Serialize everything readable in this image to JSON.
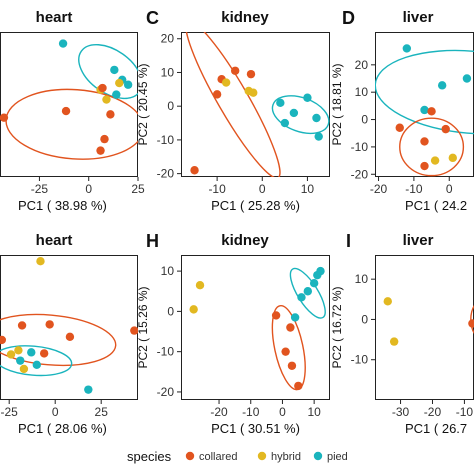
{
  "colors": {
    "collared": "#e1541f",
    "hybrid": "#e2b821",
    "pied": "#1ab4bd"
  },
  "legend": {
    "title": "species",
    "items": [
      {
        "key": "collared",
        "label": "collared"
      },
      {
        "key": "hybrid",
        "label": "hybrid"
      },
      {
        "key": "pied",
        "label": "pied"
      }
    ]
  },
  "chart_data": [
    {
      "type": "scatter",
      "title": "heart",
      "panel_tag": "",
      "xlabel": "PC1 ( 38.98 %)",
      "ylabel": "",
      "xlim": [
        -45,
        25
      ],
      "ylim": [
        -22,
        22
      ],
      "xticks": [
        -25,
        0,
        25
      ],
      "xtick_labels": [
        "-25",
        "0",
        "25"
      ],
      "yticks": [],
      "ytick_labels": [],
      "points": [
        {
          "s": "pied",
          "x": -13,
          "y": 18.5
        },
        {
          "s": "pied",
          "x": 13,
          "y": 10.5
        },
        {
          "s": "pied",
          "x": 17,
          "y": 7.5
        },
        {
          "s": "pied",
          "x": 20,
          "y": 6
        },
        {
          "s": "pied",
          "x": 14,
          "y": 3
        },
        {
          "s": "hybrid",
          "x": 15.5,
          "y": 6.5
        },
        {
          "s": "hybrid",
          "x": 6,
          "y": 4.5
        },
        {
          "s": "hybrid",
          "x": 9,
          "y": 1.5
        },
        {
          "s": "collared",
          "x": 7,
          "y": 5
        },
        {
          "s": "collared",
          "x": -11.5,
          "y": -2
        },
        {
          "s": "collared",
          "x": 11,
          "y": -3
        },
        {
          "s": "collared",
          "x": -43,
          "y": -4
        },
        {
          "s": "collared",
          "x": 8,
          "y": -10.5
        },
        {
          "s": "collared",
          "x": 6,
          "y": -14
        }
      ],
      "ellipses": [
        {
          "s": "pied",
          "cx": 11,
          "cy": 10,
          "rx": 18,
          "ry": 6.5,
          "angle": -35
        },
        {
          "s": "collared",
          "cx": -7,
          "cy": -6,
          "rx": 35,
          "ry": 10.5,
          "angle": -4
        }
      ]
    },
    {
      "type": "scatter",
      "title": "kidney",
      "panel_tag": "C",
      "xlabel": "PC1 ( 25.28 %)",
      "ylabel": "PC2 ( 20.45 %)",
      "xlim": [
        -18,
        15
      ],
      "ylim": [
        -21,
        22
      ],
      "xticks": [
        -10,
        0,
        10
      ],
      "xtick_labels": [
        "-10",
        "0",
        "10"
      ],
      "yticks": [
        -20,
        -10,
        0,
        10,
        20
      ],
      "ytick_labels": [
        "-20",
        "-10",
        "0",
        "10",
        "20"
      ],
      "points": [
        {
          "s": "collared",
          "x": -9,
          "y": 8
        },
        {
          "s": "collared",
          "x": -6,
          "y": 10.5
        },
        {
          "s": "collared",
          "x": -2.5,
          "y": 9.5
        },
        {
          "s": "collared",
          "x": -10,
          "y": 3.5
        },
        {
          "s": "collared",
          "x": -15,
          "y": -19
        },
        {
          "s": "hybrid",
          "x": -8,
          "y": 7
        },
        {
          "s": "hybrid",
          "x": -3,
          "y": 4.5
        },
        {
          "s": "hybrid",
          "x": -2,
          "y": 4
        },
        {
          "s": "pied",
          "x": 4,
          "y": 1
        },
        {
          "s": "pied",
          "x": 10,
          "y": 2.5
        },
        {
          "s": "pied",
          "x": 7,
          "y": -2
        },
        {
          "s": "pied",
          "x": 12,
          "y": -3.5
        },
        {
          "s": "pied",
          "x": 5,
          "y": -5
        },
        {
          "s": "pied",
          "x": 12.5,
          "y": -9
        }
      ],
      "ellipses": [
        {
          "s": "collared",
          "cx": -6.5,
          "cy": 2,
          "rx": 20,
          "ry": 4.5,
          "angle": -60
        },
        {
          "s": "pied",
          "cx": 8.5,
          "cy": -2.5,
          "rx": 6.5,
          "ry": 5,
          "angle": -20
        }
      ]
    },
    {
      "type": "scatter",
      "title": "liver",
      "panel_tag": "D",
      "xlabel": "PC1 ( 24.2",
      "ylabel": "PC2 ( 18.81 %)",
      "xlim": [
        -21,
        7
      ],
      "ylim": [
        -21,
        32
      ],
      "xticks": [
        -20,
        -10,
        0
      ],
      "xtick_labels": [
        "-20",
        "-10",
        "0"
      ],
      "yticks": [
        -20,
        -10,
        0,
        10,
        20
      ],
      "ytick_labels": [
        "-20",
        "-10",
        "0",
        "10",
        "20"
      ],
      "points": [
        {
          "s": "pied",
          "x": -12,
          "y": 26
        },
        {
          "s": "pied",
          "x": -2,
          "y": 12.5
        },
        {
          "s": "pied",
          "x": 5,
          "y": 15
        },
        {
          "s": "pied",
          "x": -7,
          "y": 3.5
        },
        {
          "s": "collared",
          "x": -5,
          "y": 3
        },
        {
          "s": "collared",
          "x": -14,
          "y": -3
        },
        {
          "s": "collared",
          "x": -1,
          "y": -3.5
        },
        {
          "s": "collared",
          "x": -7,
          "y": -8
        },
        {
          "s": "collared",
          "x": -7,
          "y": -17
        },
        {
          "s": "hybrid",
          "x": -4,
          "y": -15
        },
        {
          "s": "hybrid",
          "x": 1,
          "y": -14
        }
      ],
      "ellipses": [
        {
          "s": "pied",
          "cx": 6,
          "cy": 10,
          "rx": 27,
          "ry": 15,
          "angle": -5
        },
        {
          "s": "collared",
          "cx": -5,
          "cy": -10,
          "rx": 9,
          "ry": 10.5,
          "angle": 0
        }
      ]
    },
    {
      "type": "scatter",
      "title": "heart",
      "panel_tag": "",
      "xlabel": "PC1 ( 28.06 %)",
      "ylabel": "",
      "xlim": [
        -30,
        45
      ],
      "ylim": [
        -32,
        38
      ],
      "xticks": [
        -25,
        0,
        25
      ],
      "xtick_labels": [
        "-25",
        "0",
        "25"
      ],
      "yticks": [],
      "ytick_labels": [],
      "points": [
        {
          "s": "hybrid",
          "x": -8,
          "y": 35
        },
        {
          "s": "collared",
          "x": -3,
          "y": 4.5
        },
        {
          "s": "collared",
          "x": -18,
          "y": 4
        },
        {
          "s": "collared",
          "x": 8,
          "y": -1.5
        },
        {
          "s": "collared",
          "x": 43,
          "y": 1.5
        },
        {
          "s": "collared",
          "x": -6,
          "y": -9.5
        },
        {
          "s": "collared",
          "x": -29,
          "y": -3
        },
        {
          "s": "pied",
          "x": -13,
          "y": -9
        },
        {
          "s": "pied",
          "x": -19,
          "y": -13
        },
        {
          "s": "pied",
          "x": -10,
          "y": -15
        },
        {
          "s": "pied",
          "x": 18,
          "y": -27
        },
        {
          "s": "hybrid",
          "x": -20,
          "y": -8
        },
        {
          "s": "hybrid",
          "x": -24,
          "y": -10
        },
        {
          "s": "hybrid",
          "x": -17,
          "y": -17
        }
      ],
      "ellipses": [
        {
          "s": "collared",
          "cx": -3,
          "cy": -3,
          "rx": 36,
          "ry": 12,
          "angle": -5
        },
        {
          "s": "pied",
          "cx": -12,
          "cy": -13,
          "rx": 21,
          "ry": 7,
          "angle": -5
        }
      ]
    },
    {
      "type": "scatter",
      "title": "kidney",
      "panel_tag": "H",
      "xlabel": "PC1 ( 30.51 %)",
      "ylabel": "PC2 ( 15.26 %)",
      "xlim": [
        -32,
        15
      ],
      "ylim": [
        -22,
        14
      ],
      "xticks": [
        -20,
        -10,
        0,
        10
      ],
      "xtick_labels": [
        "-20",
        "-10",
        "0",
        "10"
      ],
      "yticks": [
        -20,
        -10,
        0,
        10
      ],
      "ytick_labels": [
        "-20",
        "-10",
        "0",
        "10"
      ],
      "points": [
        {
          "s": "hybrid",
          "x": -26,
          "y": 6.5
        },
        {
          "s": "hybrid",
          "x": -28,
          "y": 0.5
        },
        {
          "s": "pied",
          "x": 11,
          "y": 9
        },
        {
          "s": "pied",
          "x": 12,
          "y": 10
        },
        {
          "s": "pied",
          "x": 10,
          "y": 7
        },
        {
          "s": "pied",
          "x": 8,
          "y": 5
        },
        {
          "s": "pied",
          "x": 6,
          "y": 3.5
        },
        {
          "s": "pied",
          "x": 4,
          "y": -1.5
        },
        {
          "s": "collared",
          "x": -2,
          "y": -1
        },
        {
          "s": "collared",
          "x": 2.5,
          "y": -4
        },
        {
          "s": "collared",
          "x": 1,
          "y": -10
        },
        {
          "s": "collared",
          "x": 3,
          "y": -13.5
        },
        {
          "s": "collared",
          "x": 5,
          "y": -18.5
        }
      ],
      "ellipses": [
        {
          "s": "pied",
          "cx": 8,
          "cy": 4.5,
          "rx": 9,
          "ry": 2.5,
          "angle": -58
        },
        {
          "s": "collared",
          "cx": 2,
          "cy": -9,
          "rx": 13.5,
          "ry": 3.5,
          "angle": -78
        }
      ]
    },
    {
      "type": "scatter",
      "title": "liver",
      "panel_tag": "I",
      "xlabel": "PC1 ( 26.7",
      "ylabel": "PC2 ( 16.72 %)",
      "xlim": [
        -38,
        -7
      ],
      "ylim": [
        -20,
        16
      ],
      "xticks": [
        -30,
        -20,
        -10
      ],
      "xtick_labels": [
        "-30",
        "-20",
        "-10"
      ],
      "yticks": [
        -10,
        0,
        10
      ],
      "ytick_labels": [
        "-10",
        "0",
        "10"
      ],
      "points": [
        {
          "s": "hybrid",
          "x": -34,
          "y": 4.5
        },
        {
          "s": "hybrid",
          "x": -32,
          "y": -5.5
        },
        {
          "s": "collared",
          "x": -7.5,
          "y": -1
        }
      ],
      "ellipses": [
        {
          "s": "collared",
          "cx": -4,
          "cy": 0,
          "rx": 4,
          "ry": 5,
          "angle": 0
        }
      ]
    }
  ]
}
